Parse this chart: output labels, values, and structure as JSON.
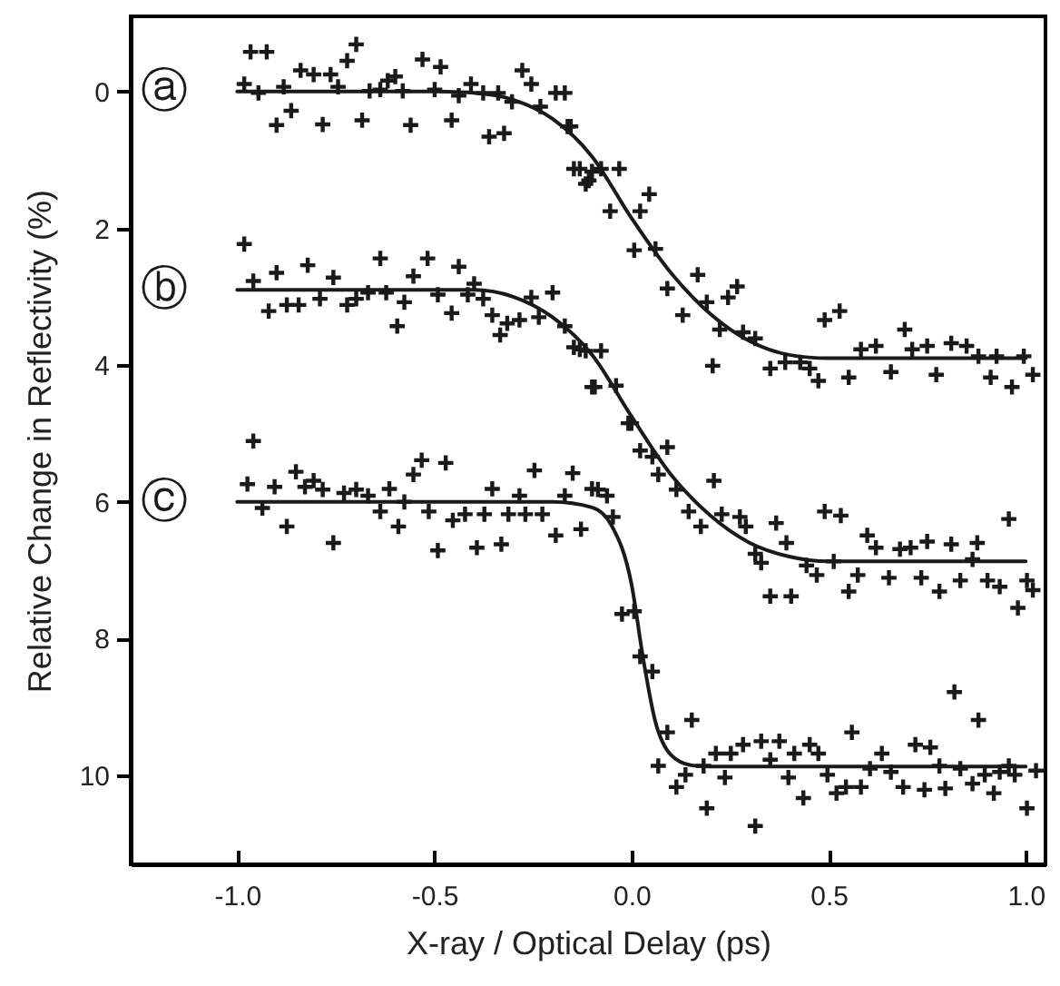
{
  "chart_data": {
    "type": "scatter",
    "xlabel": "X-ray / Optical Delay (ps)",
    "ylabel": "Relative Change in Reflectivity (%)",
    "xlim": [
      -1.27,
      1.05
    ],
    "xticks": [
      {
        "value": -1,
        "label": "-1.0"
      },
      {
        "value": -0.5,
        "label": "-0.5"
      },
      {
        "value": 0,
        "label": "0.0"
      },
      {
        "value": 0.5,
        "label": "0.5"
      },
      {
        "value": 1,
        "label": "1.0"
      }
    ],
    "ylim": [
      11.3,
      -1.1
    ],
    "yticks": [
      0,
      2,
      4,
      6,
      8,
      10
    ],
    "series": [
      {
        "marker": "cross",
        "color": "#1a1a1a",
        "x": [
          -0.966,
          -0.925,
          -0.982,
          -0.946,
          -0.882,
          -0.9,
          -0.863,
          -0.839,
          -0.806,
          -0.783,
          -0.763,
          -0.744,
          -0.721,
          -0.698,
          -0.683,
          -0.664,
          -0.637,
          -0.618,
          -0.599,
          -0.56,
          -0.58,
          -0.53,
          -0.499,
          -0.484,
          -0.456,
          -0.438,
          -0.407,
          -0.376,
          -0.361,
          -0.323,
          -0.338,
          -0.303,
          -0.277,
          -0.254,
          -0.231,
          -0.192,
          -0.162,
          -0.146,
          -0.116,
          -0.1,
          -0.169,
          -0.154,
          -0.131,
          -0.108,
          -0.077,
          -0.031,
          0.045,
          -0.054,
          0.022,
          0.007,
          0.061,
          0.091,
          0.13,
          0.168,
          0.191,
          0.245,
          0.268,
          0.224,
          0.283,
          0.314,
          0.206,
          0.352,
          0.39,
          0.428,
          0.452,
          0.474,
          0.49,
          0.528,
          0.551,
          0.582,
          0.62,
          0.658,
          0.693,
          0.712,
          0.75,
          0.773,
          0.811,
          0.85,
          0.88,
          0.926,
          0.911,
          0.965,
          0.995,
          1.018
        ],
        "values": [
          -0.58,
          -0.58,
          -0.11,
          0.02,
          -0.07,
          0.49,
          0.28,
          -0.31,
          -0.25,
          0.48,
          -0.25,
          -0.07,
          -0.45,
          -0.69,
          0.42,
          -0.01,
          -0.03,
          -0.16,
          -0.22,
          0.49,
          -0.01,
          -0.47,
          -0.03,
          -0.36,
          0.42,
          0.06,
          -0.11,
          0.02,
          0.66,
          0.61,
          0.02,
          0.15,
          -0.31,
          -0.11,
          0.22,
          0.02,
          0.51,
          1.13,
          1.35,
          1.17,
          0.02,
          0.51,
          1.13,
          1.3,
          1.13,
          1.13,
          1.5,
          1.75,
          1.75,
          2.32,
          2.3,
          2.88,
          3.27,
          2.68,
          3.08,
          3.01,
          2.85,
          3.48,
          3.52,
          3.61,
          4.01,
          4.05,
          3.96,
          3.96,
          4.05,
          4.23,
          3.34,
          3.21,
          4.18,
          3.77,
          3.72,
          4.1,
          3.48,
          3.77,
          3.72,
          4.14,
          3.68,
          3.72,
          3.87,
          3.87,
          4.18,
          4.32,
          3.87,
          4.14
        ]
      },
      {
        "marker": "cross",
        "color": "#1a1a1a",
        "x": [
          -0.982,
          -0.959,
          -0.92,
          -0.9,
          -0.874,
          -0.844,
          -0.821,
          -0.79,
          -0.756,
          -0.721,
          -0.698,
          -0.668,
          -0.637,
          -0.622,
          -0.594,
          -0.576,
          -0.553,
          -0.517,
          -0.491,
          -0.456,
          -0.438,
          -0.415,
          -0.399,
          -0.376,
          -0.353,
          -0.333,
          -0.315,
          -0.284,
          -0.254,
          -0.2,
          -0.235,
          -0.169,
          -0.146,
          -0.116,
          -0.1,
          -0.131,
          -0.077,
          -0.093,
          -0.039,
          0.0,
          -0.008,
          0.022,
          0.053,
          0.091,
          0.068,
          0.114,
          0.145,
          0.176,
          0.209,
          0.229,
          0.275,
          0.29,
          0.314,
          0.329,
          0.352,
          0.367,
          0.393,
          0.405,
          0.444,
          0.47,
          0.49,
          0.531,
          0.513,
          0.551,
          0.574,
          0.598,
          0.62,
          0.653,
          0.681,
          0.708,
          0.735,
          0.75,
          0.781,
          0.811,
          0.834,
          0.865,
          0.877,
          0.903,
          0.934,
          0.957,
          0.98,
          1.003,
          1.018
        ],
        "values": [
          2.23,
          2.77,
          3.21,
          2.65,
          3.12,
          3.12,
          2.54,
          3.03,
          2.72,
          3.12,
          3.03,
          2.94,
          2.44,
          2.94,
          3.43,
          3.08,
          2.7,
          2.44,
          2.97,
          3.24,
          2.56,
          2.97,
          2.81,
          3.03,
          3.27,
          3.56,
          3.39,
          3.34,
          3.01,
          2.94,
          3.3,
          3.43,
          3.74,
          3.79,
          4.32,
          3.77,
          3.79,
          4.32,
          4.3,
          4.85,
          4.85,
          5.25,
          5.34,
          5.2,
          5.6,
          5.82,
          6.14,
          6.36,
          5.69,
          6.18,
          6.22,
          6.36,
          6.76,
          6.89,
          7.38,
          6.31,
          6.6,
          7.38,
          6.93,
          7.07,
          6.14,
          6.2,
          6.87,
          7.31,
          7.07,
          6.49,
          6.67,
          7.11,
          6.69,
          6.67,
          7.11,
          6.58,
          7.31,
          6.62,
          7.15,
          6.84,
          6.6,
          7.15,
          7.24,
          6.25,
          7.55,
          7.15,
          7.29
        ]
      },
      {
        "marker": "cross",
        "color": "#1a1a1a",
        "x": [
          -0.959,
          -0.974,
          -0.936,
          -0.905,
          -0.874,
          -0.851,
          -0.828,
          -0.806,
          -0.783,
          -0.756,
          -0.729,
          -0.698,
          -0.668,
          -0.637,
          -0.614,
          -0.591,
          -0.576,
          -0.553,
          -0.532,
          -0.514,
          -0.491,
          -0.471,
          -0.453,
          -0.422,
          -0.392,
          -0.373,
          -0.353,
          -0.33,
          -0.312,
          -0.284,
          -0.269,
          -0.246,
          -0.226,
          -0.192,
          -0.169,
          -0.149,
          -0.128,
          -0.1,
          -0.085,
          -0.062,
          -0.047,
          -0.024,
          0.007,
          0.022,
          0.053,
          0.091,
          0.068,
          0.114,
          0.153,
          0.191,
          0.137,
          0.183,
          0.214,
          0.237,
          0.252,
          0.283,
          0.314,
          0.329,
          0.352,
          0.375,
          0.398,
          0.413,
          0.436,
          0.452,
          0.474,
          0.497,
          0.52,
          0.544,
          0.559,
          0.582,
          0.605,
          0.635,
          0.658,
          0.689,
          0.72,
          0.743,
          0.758,
          0.781,
          0.796,
          0.819,
          0.834,
          0.865,
          0.88,
          0.896,
          0.919,
          0.934,
          0.957,
          0.972,
          1.003,
          1.026
        ],
        "values": [
          5.11,
          5.74,
          6.09,
          5.78,
          6.36,
          5.56,
          5.78,
          5.69,
          5.82,
          6.6,
          5.87,
          5.82,
          5.91,
          6.14,
          5.81,
          6.36,
          6.0,
          5.6,
          5.39,
          6.14,
          6.71,
          5.43,
          6.27,
          6.18,
          6.67,
          6.18,
          5.81,
          6.62,
          6.18,
          5.91,
          6.18,
          5.54,
          6.18,
          6.49,
          5.91,
          5.58,
          6.4,
          5.81,
          5.82,
          5.91,
          6.22,
          7.64,
          7.6,
          8.26,
          8.48,
          9.37,
          9.86,
          10.17,
          9.19,
          10.48,
          9.99,
          9.86,
          9.68,
          10.03,
          9.68,
          9.55,
          10.74,
          9.5,
          9.77,
          9.5,
          10.03,
          9.68,
          10.33,
          9.55,
          9.68,
          9.99,
          10.26,
          10.17,
          9.37,
          10.17,
          9.9,
          9.68,
          9.95,
          10.17,
          9.55,
          10.21,
          9.59,
          9.86,
          10.19,
          8.78,
          9.9,
          10.12,
          9.19,
          9.99,
          10.26,
          9.95,
          9.86,
          9.99,
          10.48,
          9.93
        ]
      },
      {
        "type": "line",
        "name": "ⓐ",
        "color": "#1a1a1a",
        "x": [
          -1,
          -0.5,
          -0.4,
          -0.3,
          -0.2,
          -0.1,
          0,
          0.1,
          0.2,
          0.3,
          0.4,
          0.5,
          1
        ],
        "values": [
          0,
          0,
          0.02,
          0.12,
          0.4,
          0.95,
          1.85,
          2.65,
          3.25,
          3.65,
          3.85,
          3.9,
          3.9
        ]
      },
      {
        "type": "line",
        "name": "ⓑ",
        "color": "#1a1a1a",
        "x": [
          -1,
          -0.4,
          -0.3,
          -0.2,
          -0.1,
          0,
          0.1,
          0.2,
          0.3,
          0.4,
          0.5,
          1
        ],
        "values": [
          2.9,
          2.9,
          3.0,
          3.3,
          3.85,
          4.75,
          5.6,
          6.2,
          6.6,
          6.8,
          6.87,
          6.87
        ]
      },
      {
        "type": "line",
        "name": "ⓒ",
        "color": "#1a1a1a",
        "x": [
          -1,
          -0.2,
          -0.1,
          -0.05,
          0,
          0.03,
          0.06,
          0.1,
          0.15,
          0.2,
          1
        ],
        "values": [
          6.0,
          6.0,
          6.08,
          6.35,
          7.2,
          8.3,
          9.2,
          9.7,
          9.85,
          9.87,
          9.87
        ]
      }
    ]
  }
}
